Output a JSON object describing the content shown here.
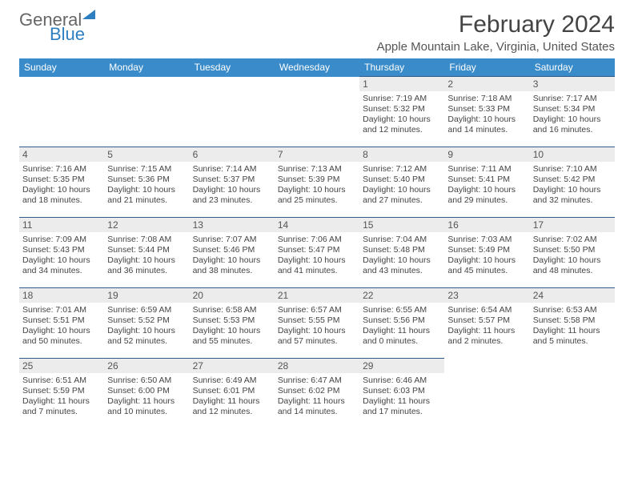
{
  "brand": {
    "part1": "General",
    "part2": "Blue"
  },
  "title": "February 2024",
  "location": "Apple Mountain Lake, Virginia, United States",
  "colors": {
    "header_bg": "#3a8bc9",
    "daynum_bg": "#ececec",
    "rule": "#2f5a8a",
    "text": "#444444",
    "logo_accent": "#2d7fc1"
  },
  "dow": [
    "Sunday",
    "Monday",
    "Tuesday",
    "Wednesday",
    "Thursday",
    "Friday",
    "Saturday"
  ],
  "weeks": [
    [
      {
        "blank": true
      },
      {
        "blank": true
      },
      {
        "blank": true
      },
      {
        "blank": true
      },
      {
        "n": "1",
        "sunrise": "7:19 AM",
        "sunset": "5:32 PM",
        "dl1": "Daylight: 10 hours",
        "dl2": "and 12 minutes."
      },
      {
        "n": "2",
        "sunrise": "7:18 AM",
        "sunset": "5:33 PM",
        "dl1": "Daylight: 10 hours",
        "dl2": "and 14 minutes."
      },
      {
        "n": "3",
        "sunrise": "7:17 AM",
        "sunset": "5:34 PM",
        "dl1": "Daylight: 10 hours",
        "dl2": "and 16 minutes."
      }
    ],
    [
      {
        "n": "4",
        "sunrise": "7:16 AM",
        "sunset": "5:35 PM",
        "dl1": "Daylight: 10 hours",
        "dl2": "and 18 minutes."
      },
      {
        "n": "5",
        "sunrise": "7:15 AM",
        "sunset": "5:36 PM",
        "dl1": "Daylight: 10 hours",
        "dl2": "and 21 minutes."
      },
      {
        "n": "6",
        "sunrise": "7:14 AM",
        "sunset": "5:37 PM",
        "dl1": "Daylight: 10 hours",
        "dl2": "and 23 minutes."
      },
      {
        "n": "7",
        "sunrise": "7:13 AM",
        "sunset": "5:39 PM",
        "dl1": "Daylight: 10 hours",
        "dl2": "and 25 minutes."
      },
      {
        "n": "8",
        "sunrise": "7:12 AM",
        "sunset": "5:40 PM",
        "dl1": "Daylight: 10 hours",
        "dl2": "and 27 minutes."
      },
      {
        "n": "9",
        "sunrise": "7:11 AM",
        "sunset": "5:41 PM",
        "dl1": "Daylight: 10 hours",
        "dl2": "and 29 minutes."
      },
      {
        "n": "10",
        "sunrise": "7:10 AM",
        "sunset": "5:42 PM",
        "dl1": "Daylight: 10 hours",
        "dl2": "and 32 minutes."
      }
    ],
    [
      {
        "n": "11",
        "sunrise": "7:09 AM",
        "sunset": "5:43 PM",
        "dl1": "Daylight: 10 hours",
        "dl2": "and 34 minutes."
      },
      {
        "n": "12",
        "sunrise": "7:08 AM",
        "sunset": "5:44 PM",
        "dl1": "Daylight: 10 hours",
        "dl2": "and 36 minutes."
      },
      {
        "n": "13",
        "sunrise": "7:07 AM",
        "sunset": "5:46 PM",
        "dl1": "Daylight: 10 hours",
        "dl2": "and 38 minutes."
      },
      {
        "n": "14",
        "sunrise": "7:06 AM",
        "sunset": "5:47 PM",
        "dl1": "Daylight: 10 hours",
        "dl2": "and 41 minutes."
      },
      {
        "n": "15",
        "sunrise": "7:04 AM",
        "sunset": "5:48 PM",
        "dl1": "Daylight: 10 hours",
        "dl2": "and 43 minutes."
      },
      {
        "n": "16",
        "sunrise": "7:03 AM",
        "sunset": "5:49 PM",
        "dl1": "Daylight: 10 hours",
        "dl2": "and 45 minutes."
      },
      {
        "n": "17",
        "sunrise": "7:02 AM",
        "sunset": "5:50 PM",
        "dl1": "Daylight: 10 hours",
        "dl2": "and 48 minutes."
      }
    ],
    [
      {
        "n": "18",
        "sunrise": "7:01 AM",
        "sunset": "5:51 PM",
        "dl1": "Daylight: 10 hours",
        "dl2": "and 50 minutes."
      },
      {
        "n": "19",
        "sunrise": "6:59 AM",
        "sunset": "5:52 PM",
        "dl1": "Daylight: 10 hours",
        "dl2": "and 52 minutes."
      },
      {
        "n": "20",
        "sunrise": "6:58 AM",
        "sunset": "5:53 PM",
        "dl1": "Daylight: 10 hours",
        "dl2": "and 55 minutes."
      },
      {
        "n": "21",
        "sunrise": "6:57 AM",
        "sunset": "5:55 PM",
        "dl1": "Daylight: 10 hours",
        "dl2": "and 57 minutes."
      },
      {
        "n": "22",
        "sunrise": "6:55 AM",
        "sunset": "5:56 PM",
        "dl1": "Daylight: 11 hours",
        "dl2": "and 0 minutes."
      },
      {
        "n": "23",
        "sunrise": "6:54 AM",
        "sunset": "5:57 PM",
        "dl1": "Daylight: 11 hours",
        "dl2": "and 2 minutes."
      },
      {
        "n": "24",
        "sunrise": "6:53 AM",
        "sunset": "5:58 PM",
        "dl1": "Daylight: 11 hours",
        "dl2": "and 5 minutes."
      }
    ],
    [
      {
        "n": "25",
        "sunrise": "6:51 AM",
        "sunset": "5:59 PM",
        "dl1": "Daylight: 11 hours",
        "dl2": "and 7 minutes."
      },
      {
        "n": "26",
        "sunrise": "6:50 AM",
        "sunset": "6:00 PM",
        "dl1": "Daylight: 11 hours",
        "dl2": "and 10 minutes."
      },
      {
        "n": "27",
        "sunrise": "6:49 AM",
        "sunset": "6:01 PM",
        "dl1": "Daylight: 11 hours",
        "dl2": "and 12 minutes."
      },
      {
        "n": "28",
        "sunrise": "6:47 AM",
        "sunset": "6:02 PM",
        "dl1": "Daylight: 11 hours",
        "dl2": "and 14 minutes."
      },
      {
        "n": "29",
        "sunrise": "6:46 AM",
        "sunset": "6:03 PM",
        "dl1": "Daylight: 11 hours",
        "dl2": "and 17 minutes."
      },
      {
        "blank": true
      },
      {
        "blank": true
      }
    ]
  ],
  "labels": {
    "sunrise": "Sunrise: ",
    "sunset": "Sunset: "
  }
}
